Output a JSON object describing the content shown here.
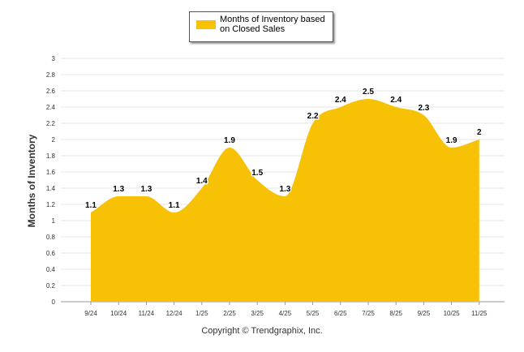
{
  "chart_data": {
    "type": "area",
    "title": "",
    "xlabel": "",
    "ylabel": "Months of Inventory",
    "ylim": [
      0,
      3
    ],
    "ytick_step": 0.2,
    "grid": true,
    "categories": [
      "9/24",
      "10/24",
      "11/24",
      "12/24",
      "1/25",
      "2/25",
      "3/25",
      "4/25",
      "5/25",
      "6/25",
      "7/25",
      "8/25",
      "9/25",
      "10/25",
      "11/25"
    ],
    "series": [
      {
        "name": "Months of Inventory based on Closed Sales",
        "values": [
          1.1,
          1.3,
          1.3,
          1.1,
          1.4,
          1.9,
          1.5,
          1.3,
          2.2,
          2.4,
          2.5,
          2.4,
          2.3,
          1.9,
          2
        ],
        "color": "#F7C206"
      }
    ],
    "legend": {
      "label": "Months of Inventory based on Closed Sales",
      "position": "top-center"
    }
  },
  "footer": {
    "copyright": "Copyright © Trendgraphix, Inc."
  }
}
